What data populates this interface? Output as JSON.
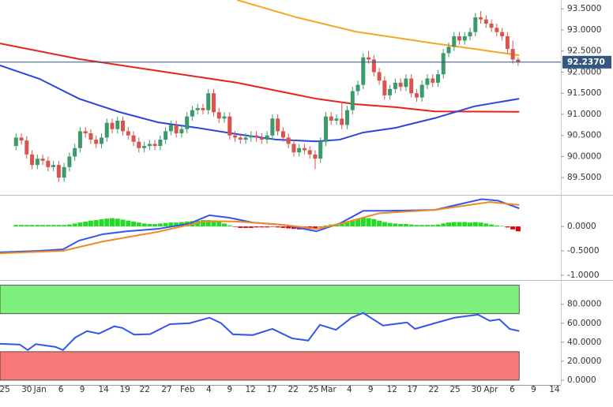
{
  "chart_data": [
    {
      "type": "candlestick",
      "xlim": [
        0,
        105
      ],
      "ylim": [
        89.13,
        93.71
      ],
      "yticks": [
        {
          "value": 89.5,
          "label": "89.5000"
        },
        {
          "value": 90,
          "label": "90.0000"
        },
        {
          "value": 90.5,
          "label": "90.5000"
        },
        {
          "value": 91,
          "label": "91.0000"
        },
        {
          "value": 91.5,
          "label": "91.5000"
        },
        {
          "value": 92,
          "label": "92.0000"
        },
        {
          "value": 92.5,
          "label": "92.5000"
        },
        {
          "value": 93,
          "label": "93.0000"
        },
        {
          "value": 93.5,
          "label": "93.5000"
        }
      ],
      "up_color": "#3a9a6a",
      "down_color": "#d9534f",
      "x": [
        3,
        4,
        5,
        6,
        7,
        8,
        9,
        10,
        11,
        12,
        13,
        14,
        15,
        16,
        17,
        18,
        19,
        20,
        21,
        22,
        23,
        24,
        25,
        26,
        27,
        28,
        29,
        30,
        31,
        32,
        33,
        34,
        35,
        36,
        37,
        38,
        39,
        40,
        41,
        42,
        43,
        44,
        45,
        46,
        47,
        48,
        49,
        50,
        51,
        52,
        53,
        54,
        55,
        56,
        57,
        58,
        59,
        60,
        61,
        62,
        63,
        64,
        65,
        66,
        67,
        68,
        69,
        70,
        71,
        72,
        73,
        74,
        75,
        76,
        77,
        78,
        79,
        80,
        81,
        82,
        83,
        84,
        85,
        86,
        87,
        88,
        89,
        90,
        91,
        92,
        93,
        94,
        95,
        96,
        97
      ],
      "open": [
        90.25,
        90.45,
        90.38,
        90.05,
        89.8,
        89.95,
        89.9,
        89.75,
        89.8,
        89.5,
        89.75,
        90.0,
        90.2,
        90.6,
        90.55,
        90.4,
        90.3,
        90.45,
        90.8,
        90.65,
        90.85,
        90.6,
        90.5,
        90.35,
        90.2,
        90.25,
        90.3,
        90.25,
        90.4,
        90.6,
        90.75,
        90.55,
        90.65,
        90.95,
        91.1,
        91.15,
        91.1,
        91.5,
        91.05,
        90.9,
        90.95,
        90.5,
        90.45,
        90.4,
        90.45,
        90.5,
        90.45,
        90.4,
        90.5,
        90.9,
        90.6,
        90.45,
        90.3,
        90.1,
        90.2,
        90.15,
        90.05,
        89.95,
        90.35,
        90.95,
        90.85,
        90.9,
        90.75,
        91.1,
        91.55,
        91.7,
        92.35,
        92.3,
        92.0,
        91.8,
        91.45,
        91.6,
        91.75,
        91.65,
        91.85,
        91.5,
        91.4,
        91.7,
        91.85,
        91.75,
        91.95,
        92.45,
        92.6,
        92.85,
        92.75,
        92.85,
        92.95,
        93.3,
        93.25,
        93.15,
        93.05,
        92.95,
        92.85,
        92.55,
        92.3
      ],
      "high": [
        90.55,
        90.55,
        90.48,
        90.15,
        90.05,
        90.05,
        90.0,
        89.9,
        89.9,
        89.85,
        90.1,
        90.3,
        90.7,
        90.7,
        90.65,
        90.5,
        90.55,
        90.9,
        90.9,
        90.95,
        90.95,
        90.7,
        90.6,
        90.45,
        90.35,
        90.4,
        90.4,
        90.5,
        90.7,
        90.85,
        90.85,
        90.75,
        91.05,
        91.2,
        91.25,
        91.25,
        91.6,
        91.6,
        91.15,
        91.05,
        91.05,
        90.6,
        90.55,
        90.55,
        90.6,
        90.6,
        90.55,
        90.6,
        91.0,
        91.0,
        90.7,
        90.55,
        90.4,
        90.3,
        90.3,
        90.25,
        90.15,
        90.45,
        91.05,
        91.05,
        91.0,
        91.3,
        91.2,
        91.65,
        91.8,
        92.45,
        92.5,
        92.4,
        92.1,
        91.9,
        91.7,
        91.85,
        91.85,
        91.95,
        91.95,
        91.6,
        91.8,
        91.95,
        91.95,
        92.05,
        92.55,
        92.7,
        92.95,
        92.95,
        92.95,
        93.05,
        93.4,
        93.45,
        93.35,
        93.25,
        93.15,
        93.05,
        92.95,
        92.75,
        92.35
      ],
      "low": [
        90.15,
        90.28,
        89.95,
        89.7,
        89.7,
        89.8,
        89.65,
        89.65,
        89.4,
        89.4,
        89.65,
        89.9,
        90.1,
        90.45,
        90.3,
        90.2,
        90.2,
        90.35,
        90.55,
        90.55,
        90.5,
        90.4,
        90.25,
        90.1,
        90.1,
        90.15,
        90.15,
        90.15,
        90.3,
        90.5,
        90.45,
        90.45,
        90.55,
        90.85,
        91.0,
        91.0,
        91.0,
        90.95,
        90.8,
        90.8,
        90.4,
        90.35,
        90.3,
        90.3,
        90.35,
        90.35,
        90.3,
        90.3,
        90.4,
        90.5,
        90.35,
        90.2,
        90.0,
        90.0,
        90.05,
        89.95,
        89.7,
        89.85,
        90.25,
        90.75,
        90.75,
        90.65,
        90.65,
        91.0,
        91.45,
        91.6,
        92.2,
        91.9,
        91.7,
        91.35,
        91.35,
        91.5,
        91.55,
        91.55,
        91.4,
        91.3,
        91.3,
        91.6,
        91.65,
        91.65,
        91.85,
        92.35,
        92.5,
        92.65,
        92.65,
        92.75,
        92.85,
        93.15,
        93.05,
        92.95,
        92.85,
        92.75,
        92.45,
        92.2,
        92.15
      ],
      "close": [
        90.45,
        90.38,
        90.05,
        89.8,
        89.95,
        89.9,
        89.75,
        89.8,
        89.5,
        89.75,
        90.0,
        90.2,
        90.6,
        90.55,
        90.4,
        90.3,
        90.45,
        90.8,
        90.65,
        90.85,
        90.6,
        90.5,
        90.35,
        90.2,
        90.25,
        90.3,
        90.25,
        90.4,
        90.6,
        90.75,
        90.55,
        90.65,
        90.95,
        91.1,
        91.15,
        91.1,
        91.5,
        91.05,
        90.9,
        90.95,
        90.5,
        90.45,
        90.4,
        90.45,
        90.5,
        90.45,
        90.4,
        90.5,
        90.9,
        90.6,
        90.45,
        90.3,
        90.1,
        90.2,
        90.15,
        90.05,
        89.95,
        90.35,
        90.95,
        90.85,
        90.9,
        90.75,
        91.1,
        91.55,
        91.7,
        92.35,
        92.3,
        92.0,
        91.8,
        91.45,
        91.6,
        91.75,
        91.65,
        91.85,
        91.5,
        91.4,
        91.7,
        91.85,
        91.75,
        91.95,
        92.45,
        92.6,
        92.85,
        92.75,
        92.85,
        92.95,
        93.3,
        93.25,
        93.15,
        93.05,
        92.95,
        92.85,
        92.55,
        92.3,
        92.237
      ],
      "lines": [
        {
          "color": "#f5a623",
          "x": [
            44.4,
            55.5,
            66.6,
            81.4,
            88.8,
            97.2
          ],
          "values": [
            93.71,
            93.3,
            92.96,
            92.68,
            92.55,
            92.4
          ]
        },
        {
          "color": "#e8231e",
          "x": [
            0,
            14.8,
            29.6,
            44.4,
            59.2,
            66.6,
            74,
            81.4,
            97.2
          ],
          "values": [
            92.68,
            92.31,
            92.03,
            91.75,
            91.37,
            91.24,
            91.17,
            91.07,
            91.06
          ]
        },
        {
          "color": "#2a45e0",
          "x": [
            0,
            7.4,
            14.8,
            22.2,
            29.6,
            37,
            44.4,
            51.8,
            59.2,
            63.6,
            68,
            74,
            81.4,
            88.8,
            97.2
          ],
          "values": [
            92.16,
            91.84,
            91.37,
            91.06,
            90.81,
            90.68,
            90.53,
            90.4,
            90.36,
            90.4,
            90.57,
            90.68,
            90.91,
            91.19,
            91.37
          ]
        }
      ],
      "last_price": {
        "value": 92.237,
        "label": "92.2370",
        "color": "#34577f"
      }
    },
    {
      "type": "macd",
      "xlim": [
        0,
        105
      ],
      "ylim": [
        -1.05,
        0.6
      ],
      "yticks": [
        {
          "value": -1,
          "label": "-1.0000"
        },
        {
          "value": -0.5,
          "label": "-0.5000"
        },
        {
          "value": 0,
          "label": "0.0000"
        }
      ],
      "histogram": {
        "positive_color": "#22dd22",
        "negative_color": "#e0000f",
        "x": [
          3,
          4,
          5,
          6,
          7,
          8,
          9,
          10,
          11,
          12,
          13,
          14,
          15,
          16,
          17,
          18,
          19,
          20,
          21,
          22,
          23,
          24,
          25,
          26,
          27,
          28,
          29,
          30,
          31,
          32,
          33,
          34,
          35,
          36,
          37,
          38,
          39,
          40,
          41,
          42,
          43,
          44,
          45,
          46,
          47,
          48,
          49,
          50,
          51,
          52,
          53,
          54,
          55,
          56,
          57,
          58,
          59,
          60,
          61,
          62,
          63,
          64,
          65,
          66,
          67,
          68,
          69,
          70,
          71,
          72,
          73,
          74,
          75,
          76,
          77,
          78,
          79,
          80,
          81,
          82,
          83,
          84,
          85,
          86,
          87,
          88,
          89,
          90,
          91,
          92,
          93,
          94,
          95,
          96,
          97
        ],
        "values": [
          0.03,
          0.03,
          0.03,
          0.03,
          0.03,
          0.03,
          0.03,
          0.03,
          0.03,
          0.03,
          0.04,
          0.06,
          0.08,
          0.1,
          0.12,
          0.13,
          0.15,
          0.16,
          0.17,
          0.16,
          0.14,
          0.12,
          0.1,
          0.08,
          0.06,
          0.05,
          0.05,
          0.06,
          0.07,
          0.08,
          0.08,
          0.09,
          0.1,
          0.11,
          0.12,
          0.13,
          0.13,
          0.12,
          0.1,
          0.06,
          0.02,
          -0.01,
          -0.03,
          -0.03,
          -0.03,
          -0.02,
          -0.02,
          -0.02,
          -0.01,
          -0.02,
          -0.03,
          -0.04,
          -0.05,
          -0.06,
          -0.06,
          -0.05,
          -0.04,
          -0.01,
          0.02,
          0.04,
          0.05,
          0.06,
          0.08,
          0.12,
          0.15,
          0.18,
          0.17,
          0.15,
          0.12,
          0.09,
          0.07,
          0.06,
          0.05,
          0.05,
          0.04,
          0.03,
          0.03,
          0.03,
          0.03,
          0.04,
          0.06,
          0.08,
          0.09,
          0.09,
          0.09,
          0.08,
          0.09,
          0.08,
          0.06,
          0.04,
          0.02,
          0.01,
          -0.02,
          -0.06,
          -0.1
        ]
      },
      "series": [
        {
          "color": "#3355ee",
          "x": [
            0,
            7.4,
            11.8,
            14.8,
            19.2,
            23.7,
            29.6,
            35.5,
            39.2,
            42.9,
            47.3,
            53.3,
            59.2,
            63.6,
            68,
            72.5,
            81.4,
            90.2,
            93.2,
            97.2
          ],
          "values": [
            -0.53,
            -0.5,
            -0.47,
            -0.29,
            -0.16,
            -0.1,
            -0.05,
            0.06,
            0.23,
            0.18,
            0.08,
            0.03,
            -0.1,
            0.06,
            0.32,
            0.32,
            0.34,
            0.56,
            0.53,
            0.37
          ]
        },
        {
          "color": "#f08a24",
          "x": [
            0,
            11.8,
            19.2,
            29.6,
            38.5,
            44.4,
            53.3,
            59.2,
            63.6,
            71,
            81.4,
            91.7,
            97.2
          ],
          "values": [
            -0.55,
            -0.5,
            -0.31,
            -0.11,
            0.11,
            0.1,
            0.03,
            -0.05,
            0.05,
            0.27,
            0.34,
            0.5,
            0.44
          ]
        }
      ]
    },
    {
      "type": "line",
      "xlim": [
        0,
        105
      ],
      "ylim": [
        -5,
        103
      ],
      "yticks": [
        {
          "value": 0,
          "label": "0.0000"
        },
        {
          "value": 20,
          "label": "20.0000"
        },
        {
          "value": 40,
          "label": "40.0000"
        },
        {
          "value": 60,
          "label": "60.0000"
        },
        {
          "value": 80,
          "label": "80.0000"
        }
      ],
      "zones": [
        {
          "from": 70,
          "to": 100,
          "color": "#7ef07e"
        },
        {
          "from": 0,
          "to": 30,
          "color": "#f87878"
        }
      ],
      "series": [
        {
          "color": "#3355ee",
          "x": [
            0,
            3.7,
            5.2,
            6.7,
            10.4,
            11.8,
            14.1,
            16.3,
            18.5,
            21.4,
            22.9,
            25.1,
            28.1,
            31.8,
            35.5,
            39.2,
            41.4,
            43.6,
            47.3,
            51,
            54.7,
            57.7,
            59.9,
            62.9,
            65.8,
            68,
            71.7,
            76.2,
            77.7,
            81.4,
            85.1,
            89.5,
            91.7,
            93.5,
            95.4,
            97.2
          ],
          "values": [
            38.3,
            37.5,
            31.7,
            38,
            35,
            31.7,
            45,
            51.7,
            49,
            56.7,
            55,
            48,
            48.5,
            59,
            60,
            65.8,
            60,
            48.3,
            47.5,
            54,
            44,
            41.7,
            58.3,
            53,
            65.8,
            70.8,
            57.5,
            60.8,
            54,
            60,
            65.8,
            69,
            62.5,
            64,
            54,
            51.7
          ]
        }
      ],
      "xticks": [
        {
          "value": 0.9,
          "label": "25"
        },
        {
          "value": 5.0,
          "label": "30"
        },
        {
          "value": 7.5,
          "label": "Jan"
        },
        {
          "value": 11.4,
          "label": "6"
        },
        {
          "value": 15.4,
          "label": "9"
        },
        {
          "value": 19.4,
          "label": "14"
        },
        {
          "value": 23.4,
          "label": "19"
        },
        {
          "value": 27.1,
          "label": "22"
        },
        {
          "value": 31.2,
          "label": "27"
        },
        {
          "value": 35.1,
          "label": "Feb"
        },
        {
          "value": 39.1,
          "label": "4"
        },
        {
          "value": 43.0,
          "label": "9"
        },
        {
          "value": 46.9,
          "label": "12"
        },
        {
          "value": 50.9,
          "label": "17"
        },
        {
          "value": 54.9,
          "label": "22"
        },
        {
          "value": 58.7,
          "label": "25"
        },
        {
          "value": 61.5,
          "label": "Mar"
        },
        {
          "value": 65.4,
          "label": "4"
        },
        {
          "value": 69.4,
          "label": "9"
        },
        {
          "value": 73.4,
          "label": "12"
        },
        {
          "value": 77.2,
          "label": "17"
        },
        {
          "value": 81.2,
          "label": "22"
        },
        {
          "value": 85.2,
          "label": "25"
        },
        {
          "value": 89.2,
          "label": "30"
        },
        {
          "value": 91.9,
          "label": "Apr"
        },
        {
          "value": 95.9,
          "label": "6"
        },
        {
          "value": 99.9,
          "label": "9"
        },
        {
          "value": 103.8,
          "label": "14"
        }
      ]
    }
  ]
}
